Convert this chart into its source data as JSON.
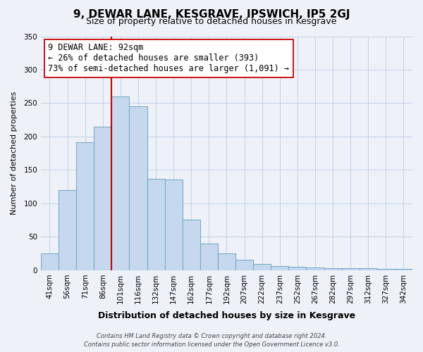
{
  "title": "9, DEWAR LANE, KESGRAVE, IPSWICH, IP5 2GJ",
  "subtitle": "Size of property relative to detached houses in Kesgrave",
  "xlabel": "Distribution of detached houses by size in Kesgrave",
  "ylabel": "Number of detached properties",
  "categories": [
    "41sqm",
    "56sqm",
    "71sqm",
    "86sqm",
    "101sqm",
    "116sqm",
    "132sqm",
    "147sqm",
    "162sqm",
    "177sqm",
    "192sqm",
    "207sqm",
    "222sqm",
    "237sqm",
    "252sqm",
    "267sqm",
    "282sqm",
    "297sqm",
    "312sqm",
    "327sqm",
    "342sqm"
  ],
  "values": [
    25,
    120,
    192,
    215,
    260,
    245,
    137,
    136,
    76,
    40,
    25,
    16,
    9,
    6,
    5,
    4,
    3,
    3,
    3,
    2,
    2
  ],
  "bar_color": "#c5d8ee",
  "bar_edge_color": "#7aaac8",
  "vline_color": "#cc0000",
  "vline_x_index": 3.5,
  "annotation_line1": "9 DEWAR LANE: 92sqm",
  "annotation_line2": "← 26% of detached houses are smaller (393)",
  "annotation_line3": "73% of semi-detached houses are larger (1,091) →",
  "annotation_box_color": "#ffffff",
  "annotation_box_edge": "#cc0000",
  "ylim": [
    0,
    350
  ],
  "yticks": [
    0,
    50,
    100,
    150,
    200,
    250,
    300,
    350
  ],
  "footer_line1": "Contains HM Land Registry data © Crown copyright and database right 2024.",
  "footer_line2": "Contains public sector information licensed under the Open Government Licence v3.0.",
  "background_color": "#eef2f8",
  "plot_bg_color": "#eef2f8",
  "grid_color": "#c8d4e8",
  "title_fontsize": 11,
  "subtitle_fontsize": 9,
  "xlabel_fontsize": 9,
  "ylabel_fontsize": 8,
  "tick_fontsize": 7.5,
  "annot_fontsize": 8.5
}
